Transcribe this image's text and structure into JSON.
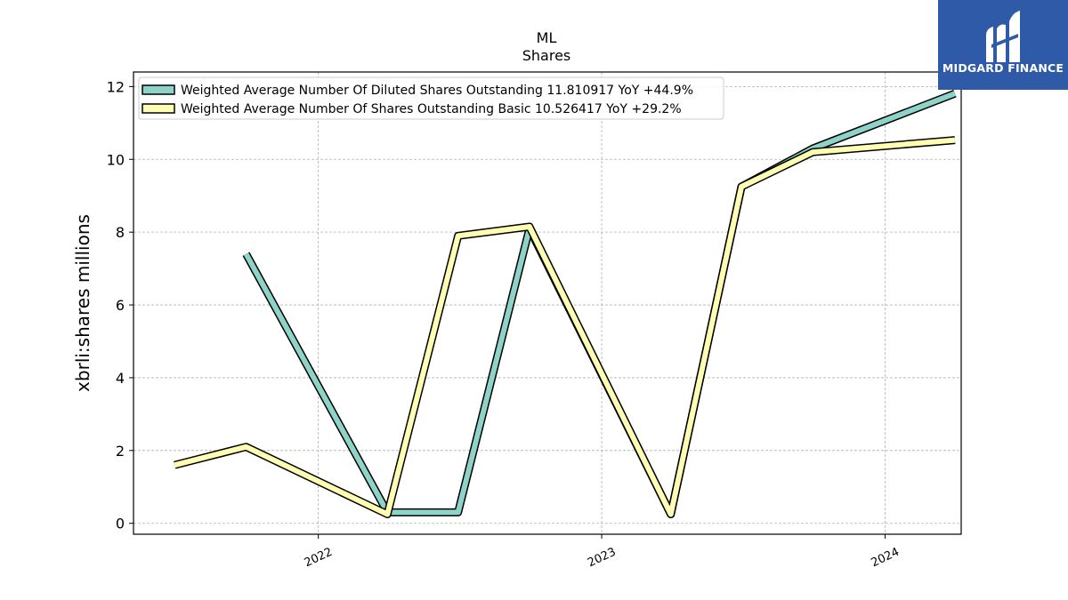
{
  "chart_data": {
    "type": "line",
    "title": "ML",
    "subtitle": "Shares",
    "xlabel": "",
    "ylabel": "xbrli:shares millions",
    "ylim": [
      -0.3,
      12.4
    ],
    "yticks": [
      0,
      2,
      4,
      6,
      8,
      10,
      12
    ],
    "xlim": [
      "2021-05-08",
      "2024-04-08"
    ],
    "xticks": [
      {
        "date": "2022-01-01",
        "label": "2022"
      },
      {
        "date": "2023-01-01",
        "label": "2023"
      },
      {
        "date": "2024-01-01",
        "label": "2024"
      }
    ],
    "grid": true,
    "legend_position": "top-left",
    "series": [
      {
        "name": "Weighted Average Number Of Diluted Shares Outstanding",
        "legend_label": "Weighted Average Number Of Diluted Shares Outstanding  11.810917 YoY +44.9%",
        "color": "#8dd3c7",
        "points": [
          {
            "x": "2021-09-30",
            "y": 7.4
          },
          {
            "x": "2022-03-31",
            "y": 0.3
          },
          {
            "x": "2022-06-30",
            "y": 0.3
          },
          {
            "x": "2022-09-30",
            "y": 8.1
          },
          {
            "x": "2023-03-31",
            "y": 0.25
          },
          {
            "x": "2023-06-30",
            "y": 9.25
          },
          {
            "x": "2023-09-30",
            "y": 10.3
          },
          {
            "x": "2024-03-31",
            "y": 11.81
          }
        ]
      },
      {
        "name": "Weighted Average Number Of Shares Outstanding Basic",
        "legend_label": "Weighted Average Number Of Shares Outstanding Basic  10.526417 YoY +29.2%",
        "color": "#ffffb3",
        "points": [
          {
            "x": "2021-06-30",
            "y": 1.6
          },
          {
            "x": "2021-09-30",
            "y": 2.1
          },
          {
            "x": "2022-03-31",
            "y": 0.25
          },
          {
            "x": "2022-06-30",
            "y": 7.9
          },
          {
            "x": "2022-09-30",
            "y": 8.15
          },
          {
            "x": "2023-03-31",
            "y": 0.25
          },
          {
            "x": "2023-06-30",
            "y": 9.25
          },
          {
            "x": "2023-09-30",
            "y": 10.2
          },
          {
            "x": "2024-03-31",
            "y": 10.53
          }
        ]
      }
    ]
  },
  "logo": {
    "text": "MIDGARD FINANCE",
    "background": "#2e5aa8"
  }
}
